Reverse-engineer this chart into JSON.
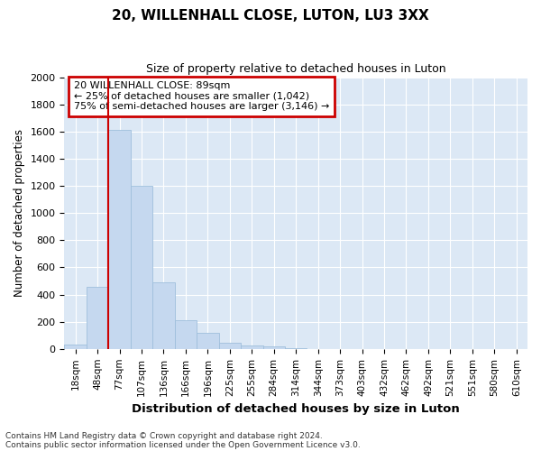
{
  "title1": "20, WILLENHALL CLOSE, LUTON, LU3 3XX",
  "title2": "Size of property relative to detached houses in Luton",
  "xlabel": "Distribution of detached houses by size in Luton",
  "ylabel": "Number of detached properties",
  "categories": [
    "18sqm",
    "48sqm",
    "77sqm",
    "107sqm",
    "136sqm",
    "166sqm",
    "196sqm",
    "225sqm",
    "255sqm",
    "284sqm",
    "314sqm",
    "344sqm",
    "373sqm",
    "403sqm",
    "432sqm",
    "462sqm",
    "492sqm",
    "521sqm",
    "551sqm",
    "580sqm",
    "610sqm"
  ],
  "values": [
    35,
    460,
    1610,
    1200,
    490,
    210,
    120,
    48,
    25,
    20,
    8,
    0,
    0,
    0,
    0,
    0,
    0,
    0,
    0,
    0,
    0
  ],
  "bar_color": "#c5d8ef",
  "bar_edge_color": "#9fbfdc",
  "red_line_x": 2,
  "annotation_title": "20 WILLENHALL CLOSE: 89sqm",
  "annotation_line1": "← 25% of detached houses are smaller (1,042)",
  "annotation_line2": "75% of semi-detached houses are larger (3,146) →",
  "annotation_box_color": "#cc0000",
  "ylim": [
    0,
    2000
  ],
  "yticks": [
    0,
    200,
    400,
    600,
    800,
    1000,
    1200,
    1400,
    1600,
    1800,
    2000
  ],
  "footnote1": "Contains HM Land Registry data © Crown copyright and database right 2024.",
  "footnote2": "Contains public sector information licensed under the Open Government Licence v3.0.",
  "plot_bg_color": "#dce8f5",
  "grid_color": "#ffffff",
  "fig_bg_color": "#ffffff"
}
